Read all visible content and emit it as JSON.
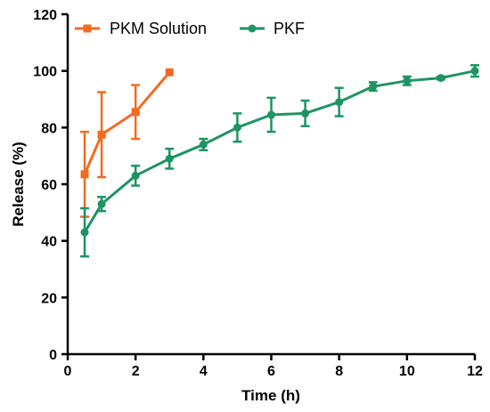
{
  "chart_data": {
    "type": "line",
    "title": "",
    "xlabel": "Time (h)",
    "ylabel": "Release (%)",
    "xlim": [
      0,
      12
    ],
    "ylim": [
      0,
      120
    ],
    "xticks": [
      0,
      2,
      4,
      6,
      8,
      10,
      12
    ],
    "yticks": [
      0,
      20,
      40,
      60,
      80,
      100,
      120
    ],
    "grid": false,
    "legend_position": "top-left",
    "series": [
      {
        "name": "PKM Solution",
        "color": "#f26b21",
        "marker": "square",
        "x": [
          0.5,
          1,
          2,
          3
        ],
        "y": [
          63.5,
          77.5,
          85.5,
          99.5
        ],
        "error": [
          15,
          15,
          9.5,
          0
        ]
      },
      {
        "name": "PKF",
        "color": "#1e9463",
        "marker": "circle",
        "x": [
          0.5,
          1,
          2,
          3,
          4,
          5,
          6,
          7,
          8,
          9,
          10,
          11,
          12
        ],
        "y": [
          43,
          53,
          63,
          69,
          74,
          80,
          84.5,
          85,
          89,
          94.5,
          96.5,
          97.5,
          100
        ],
        "error": [
          8.5,
          2.5,
          3.5,
          3.5,
          2,
          5,
          6,
          4.5,
          5,
          1.5,
          1.5,
          0.5,
          2
        ]
      }
    ]
  }
}
